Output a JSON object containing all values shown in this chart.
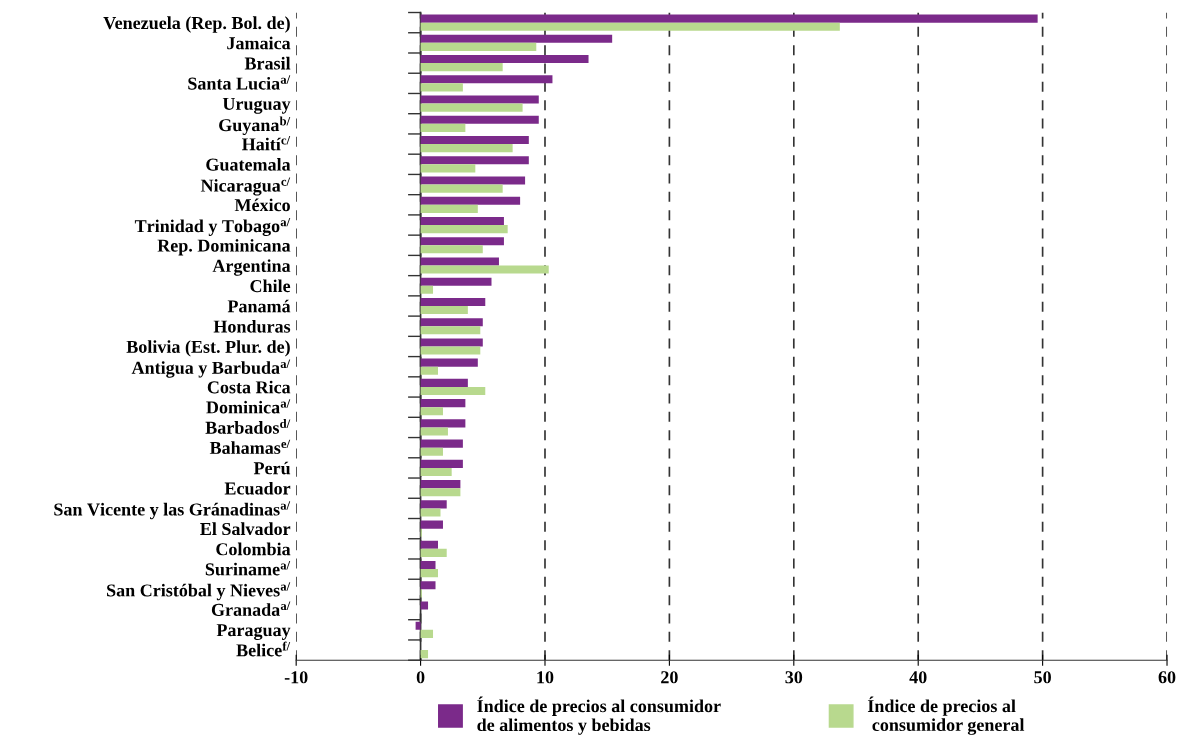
{
  "chart_data": {
    "type": "bar",
    "orientation": "horizontal",
    "categories": [
      "Venezuela (Rep. Bol. de)",
      "Jamaica",
      "Brasil",
      "Santa Lucia$^{a/}$",
      "Uruguay",
      "Guyana$^{b/}$",
      "Haití$^{c/}$",
      "Guatemala",
      "Nicaragua$^{c/}$",
      "México",
      "Trinidad y Tobago$^{a/}$",
      "Rep. Dominicana",
      "Argentina",
      "Chile",
      "Panamá",
      "Honduras",
      "Bolivia (Est. Plur. de)",
      "Antigua y Barbuda$^{a/}$",
      "Costa Rica",
      "Dominica$^{a/}$",
      "Barbados$^{d/}$",
      "Bahamas$^{e/}$",
      "Perú",
      "Ecuador",
      "San Vicente y las Gránadinas$^{a/}$",
      "El Salvador",
      "Colombia",
      "Suriname$^{a/}$",
      "San Cristóbal y Nieves$^{a/}$",
      "Granada$^{a/}$",
      "Paraguay",
      "Belice$^{f/}$"
    ],
    "series": [
      {
        "name": "Índice de precios al consumidor\nde alimentos y bebidas",
        "color": "#7b2a8a",
        "values": [
          49.6,
          15.4,
          13.5,
          10.6,
          9.5,
          9.5,
          8.7,
          8.7,
          8.4,
          8.0,
          6.7,
          6.7,
          6.3,
          5.7,
          5.2,
          5.0,
          5.0,
          4.6,
          3.8,
          3.6,
          3.6,
          3.4,
          3.4,
          3.2,
          2.1,
          1.8,
          1.4,
          1.2,
          1.2,
          0.6,
          -0.4,
          null
        ]
      },
      {
        "name": "Índice de precios al\n consumidor general",
        "color": "#b8d98e",
        "values": [
          33.7,
          9.3,
          6.6,
          3.4,
          8.2,
          3.6,
          7.4,
          4.4,
          6.6,
          4.6,
          7.0,
          5.0,
          10.3,
          1.0,
          3.8,
          4.8,
          4.8,
          1.4,
          5.2,
          1.8,
          2.2,
          1.8,
          2.5,
          3.2,
          1.6,
          0.1,
          2.1,
          1.4,
          0.1,
          null,
          1.0,
          0.6
        ]
      }
    ],
    "xlim": [
      -10,
      60
    ],
    "xticks": [
      -10,
      0,
      10,
      20,
      30,
      40,
      50,
      60
    ],
    "grid": "x",
    "legend": "bottom"
  }
}
